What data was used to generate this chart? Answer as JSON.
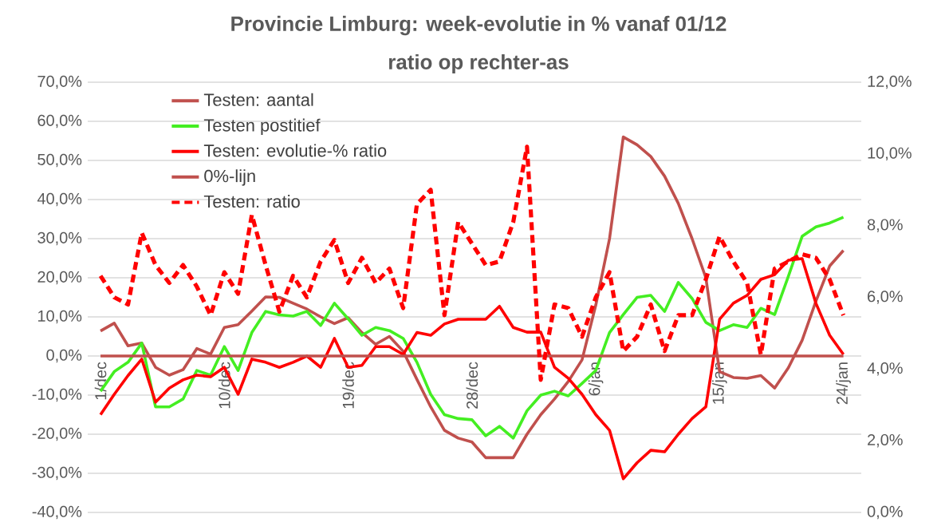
{
  "chart_data": {
    "type": "line",
    "title": "Provincie Limburg: week-evolutie in %  vanaf 01/12",
    "subtitle": "ratio op rechter-as",
    "categories": [
      "1/dec",
      null,
      null,
      null,
      null,
      null,
      null,
      null,
      null,
      "10/dec",
      null,
      null,
      null,
      null,
      null,
      null,
      null,
      null,
      "19/dec",
      null,
      null,
      null,
      null,
      null,
      null,
      null,
      null,
      "28/dec",
      null,
      null,
      null,
      null,
      null,
      null,
      null,
      null,
      "6/jan",
      null,
      null,
      null,
      null,
      null,
      null,
      null,
      null,
      "15/jan",
      null,
      null,
      null,
      null,
      null,
      null,
      null,
      null,
      "24/jan"
    ],
    "series": [
      {
        "name": "Testen: aantal",
        "color": "#c0504d",
        "values": [
          6.4,
          8.4,
          2.6,
          3.3,
          -2.9,
          -4.9,
          -3.5,
          1.9,
          0.5,
          7.3,
          8,
          11.5,
          15.1,
          15,
          13.5,
          12,
          10,
          8.3,
          9.8,
          6,
          3,
          5,
          1.2,
          -6,
          -13,
          -19,
          -21,
          -22,
          -26,
          -26,
          -26,
          -20,
          -15,
          -11,
          -6.5,
          -1,
          13,
          30,
          56,
          54,
          51,
          46,
          39,
          30,
          20,
          -4,
          -5.5,
          -5.7,
          -5,
          -8.2,
          -3,
          4,
          14,
          23,
          27
        ]
      },
      {
        "name": "Testen postitief",
        "color": "#44ee22",
        "values": [
          -9,
          -4,
          -1.6,
          3.3,
          -13,
          -13,
          -11,
          -3.7,
          -4.9,
          2.4,
          -3.7,
          6,
          11.4,
          10.5,
          10.2,
          11.4,
          7.8,
          13.5,
          9.5,
          5.3,
          7.3,
          6.5,
          4.5,
          -1.6,
          -9.8,
          -15,
          -16,
          -16.3,
          -20.4,
          -18,
          -21,
          -14,
          -10,
          -9,
          -10.2,
          -7,
          -3.7,
          6,
          10.6,
          15,
          15.5,
          11.4,
          18.8,
          14.7,
          8.6,
          6.5,
          8,
          7.3,
          12.2,
          10.6,
          20.4,
          30.6,
          33,
          34,
          35.5
        ]
      },
      {
        "name": "Testen: evolutie-% ratio",
        "color": "#ff0000",
        "values": [
          -15,
          -9.8,
          -5,
          -0.8,
          -11.8,
          -8.2,
          -6.1,
          -4.9,
          -5.3,
          -2.9,
          -9.8,
          -0.8,
          -1.6,
          -2.9,
          -1.6,
          0,
          -2.9,
          4.5,
          -2.9,
          -2.4,
          2.4,
          2.4,
          0.4,
          6,
          5.3,
          8.2,
          9.4,
          9.4,
          9.4,
          12.7,
          7.3,
          6.1,
          6.1,
          -2.9,
          -5.7,
          -9.8,
          -15,
          -19,
          -31.4,
          -27.3,
          -24.1,
          -24.5,
          -20,
          -16,
          -13,
          9.4,
          13.5,
          15.5,
          19.6,
          20.8,
          24.5,
          24.9,
          13.5,
          5.3,
          0.4
        ]
      },
      {
        "name": "0%-lijn",
        "color": "#c0504d",
        "values": [
          0,
          0,
          0,
          0,
          0,
          0,
          0,
          0,
          0,
          0,
          0,
          0,
          0,
          0,
          0,
          0,
          0,
          0,
          0,
          0,
          0,
          0,
          0,
          0,
          0,
          0,
          0,
          0,
          0,
          0,
          0,
          0,
          0,
          0,
          0,
          0,
          0,
          0,
          0,
          0,
          0,
          0,
          0,
          0,
          0,
          0,
          0,
          0,
          0,
          0,
          0,
          0,
          0,
          0,
          0
        ]
      },
      {
        "name": "Testen: ratio",
        "color": "#ff0000",
        "line_style": "dashed",
        "axis": "y2",
        "values": [
          6.6,
          6.0,
          5.8,
          7.8,
          6.9,
          6.4,
          6.9,
          6.3,
          5.5,
          6.7,
          6.1,
          8.3,
          6.9,
          5.6,
          6.6,
          6.0,
          7.0,
          7.6,
          6.4,
          7.1,
          6.4,
          6.8,
          5.7,
          8.6,
          9.0,
          5.5,
          8.1,
          7.5,
          6.9,
          7.0,
          8.1,
          10.2,
          3.7,
          5.8,
          5.7,
          4.9,
          6.0,
          6.7,
          4.5,
          4.9,
          5.8,
          4.5,
          5.5,
          5.5,
          6.5,
          7.7,
          7.0,
          6.4,
          4.4,
          6.8,
          7.0,
          7.2,
          7.1,
          6.5,
          5.5
        ]
      }
    ],
    "ylim": [
      -40,
      70
    ],
    "yticks": [
      {
        "value": -40,
        "label": "-40,0%"
      },
      {
        "value": -30,
        "label": "-30,0%"
      },
      {
        "value": -20,
        "label": "-20,0%"
      },
      {
        "value": -10,
        "label": "-10,0%"
      },
      {
        "value": 0,
        "label": "0,0%"
      },
      {
        "value": 10,
        "label": "10,0%"
      },
      {
        "value": 20,
        "label": "20,0%"
      },
      {
        "value": 30,
        "label": "30,0%"
      },
      {
        "value": 40,
        "label": "40,0%"
      },
      {
        "value": 50,
        "label": "50,0%"
      },
      {
        "value": 60,
        "label": "60,0%"
      },
      {
        "value": 70,
        "label": "70,0%"
      }
    ],
    "y2lim": [
      0,
      12
    ],
    "y2ticks": [
      {
        "value": 0,
        "label": "0,0%"
      },
      {
        "value": 2,
        "label": "2,0%"
      },
      {
        "value": 4,
        "label": "4,0%"
      },
      {
        "value": 6,
        "label": "6,0%"
      },
      {
        "value": 8,
        "label": "8,0%"
      },
      {
        "value": 10,
        "label": "10,0%"
      },
      {
        "value": 12,
        "label": "12,0%"
      }
    ],
    "grid": "y",
    "legend": "top left",
    "marker": "none"
  }
}
